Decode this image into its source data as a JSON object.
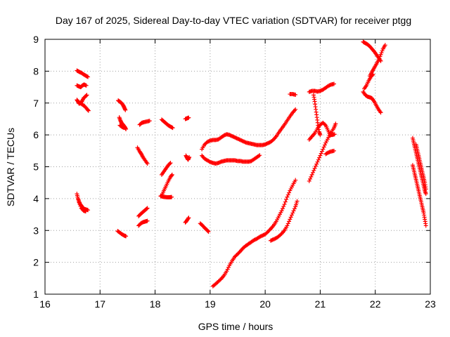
{
  "chart_data": {
    "type": "scatter",
    "title": "Day 167 of 2025, Sidereal Day-to-day VTEC variation (SDTVAR) for receiver ptgg",
    "xlabel": "GPS time / hours",
    "ylabel": "SDTVAR / TECUs",
    "xlim": [
      16,
      23
    ],
    "ylim": [
      1,
      9
    ],
    "xticks": [
      "16",
      "17",
      "18",
      "19",
      "20",
      "21",
      "22",
      "23"
    ],
    "yticks": [
      "1",
      "2",
      "3",
      "4",
      "5",
      "6",
      "7",
      "8",
      "9"
    ],
    "grid": true,
    "marker": "plus",
    "color": "#ff0000",
    "segments": [
      [
        [
          16.58,
          8.02
        ],
        [
          16.62,
          7.98
        ],
        [
          16.66,
          7.95
        ],
        [
          16.7,
          7.9
        ],
        [
          16.74,
          7.86
        ],
        [
          16.78,
          7.82
        ]
      ],
      [
        [
          16.58,
          7.55
        ],
        [
          16.62,
          7.52
        ],
        [
          16.65,
          7.5
        ],
        [
          16.68,
          7.55
        ],
        [
          16.71,
          7.58
        ],
        [
          16.75,
          7.55
        ]
      ],
      [
        [
          16.58,
          7.1
        ],
        [
          16.6,
          7.05
        ],
        [
          16.62,
          6.98
        ],
        [
          16.64,
          7.0
        ],
        [
          16.67,
          7.05
        ],
        [
          16.7,
          7.15
        ],
        [
          16.73,
          7.2
        ],
        [
          16.76,
          7.25
        ]
      ],
      [
        [
          16.64,
          7.0
        ],
        [
          16.68,
          6.95
        ],
        [
          16.72,
          6.9
        ],
        [
          16.76,
          6.82
        ],
        [
          16.79,
          6.76
        ]
      ],
      [
        [
          16.58,
          4.15
        ],
        [
          16.6,
          4.0
        ],
        [
          16.62,
          3.9
        ],
        [
          16.64,
          3.82
        ],
        [
          16.66,
          3.78
        ],
        [
          16.68,
          3.72
        ],
        [
          16.71,
          3.68
        ],
        [
          16.74,
          3.66
        ],
        [
          16.78,
          3.64
        ]
      ],
      [
        [
          16.62,
          3.88
        ],
        [
          16.66,
          3.7
        ],
        [
          16.7,
          3.62
        ],
        [
          16.74,
          3.6
        ]
      ],
      [
        [
          17.33,
          7.08
        ],
        [
          17.36,
          7.04
        ],
        [
          17.39,
          7.0
        ],
        [
          17.42,
          6.93
        ],
        [
          17.44,
          6.86
        ],
        [
          17.46,
          6.78
        ]
      ],
      [
        [
          17.35,
          6.55
        ],
        [
          17.37,
          6.45
        ],
        [
          17.39,
          6.38
        ],
        [
          17.42,
          6.32
        ],
        [
          17.45,
          6.25
        ],
        [
          17.47,
          6.18
        ]
      ],
      [
        [
          17.36,
          6.3
        ],
        [
          17.4,
          6.25
        ],
        [
          17.44,
          6.22
        ]
      ],
      [
        [
          17.32,
          2.98
        ],
        [
          17.36,
          2.93
        ],
        [
          17.4,
          2.88
        ],
        [
          17.44,
          2.84
        ],
        [
          17.47,
          2.82
        ]
      ],
      [
        [
          17.72,
          6.32
        ],
        [
          17.76,
          6.38
        ],
        [
          17.8,
          6.4
        ],
        [
          17.85,
          6.42
        ],
        [
          17.9,
          6.44
        ]
      ],
      [
        [
          17.68,
          5.6
        ],
        [
          17.72,
          5.48
        ],
        [
          17.75,
          5.4
        ],
        [
          17.78,
          5.3
        ],
        [
          17.82,
          5.2
        ],
        [
          17.86,
          5.1
        ]
      ],
      [
        [
          17.7,
          3.45
        ],
        [
          17.74,
          3.52
        ],
        [
          17.78,
          3.58
        ],
        [
          17.82,
          3.64
        ],
        [
          17.86,
          3.7
        ]
      ],
      [
        [
          17.7,
          3.15
        ],
        [
          17.74,
          3.22
        ],
        [
          17.78,
          3.26
        ],
        [
          17.82,
          3.28
        ],
        [
          17.86,
          3.3
        ]
      ],
      [
        [
          18.12,
          6.48
        ],
        [
          18.16,
          6.42
        ],
        [
          18.2,
          6.36
        ],
        [
          18.24,
          6.3
        ],
        [
          18.28,
          6.26
        ],
        [
          18.32,
          6.22
        ]
      ],
      [
        [
          18.12,
          4.75
        ],
        [
          18.16,
          4.85
        ],
        [
          18.2,
          4.95
        ],
        [
          18.24,
          5.05
        ],
        [
          18.28,
          5.12
        ]
      ],
      [
        [
          18.12,
          4.1
        ],
        [
          18.16,
          4.25
        ],
        [
          18.2,
          4.4
        ],
        [
          18.24,
          4.55
        ],
        [
          18.28,
          4.68
        ],
        [
          18.31,
          4.75
        ]
      ],
      [
        [
          18.1,
          4.08
        ],
        [
          18.14,
          4.06
        ],
        [
          18.18,
          4.05
        ],
        [
          18.22,
          4.04
        ],
        [
          18.26,
          4.04
        ],
        [
          18.3,
          4.05
        ]
      ],
      [
        [
          18.55,
          6.5
        ],
        [
          18.58,
          6.52
        ],
        [
          18.61,
          6.54
        ]
      ],
      [
        [
          18.56,
          5.35
        ],
        [
          18.58,
          5.28
        ],
        [
          18.6,
          5.22
        ],
        [
          18.62,
          5.3
        ]
      ],
      [
        [
          18.55,
          3.25
        ],
        [
          18.58,
          3.32
        ],
        [
          18.61,
          3.4
        ]
      ],
      [
        [
          18.82,
          3.22
        ],
        [
          18.86,
          3.16
        ],
        [
          18.9,
          3.08
        ],
        [
          18.94,
          3.02
        ],
        [
          18.97,
          2.96
        ]
      ],
      [
        [
          19.05,
          1.25
        ],
        [
          19.1,
          1.32
        ],
        [
          19.15,
          1.4
        ],
        [
          19.2,
          1.48
        ],
        [
          19.25,
          1.58
        ],
        [
          19.3,
          1.72
        ],
        [
          19.35,
          1.9
        ],
        [
          19.4,
          2.05
        ],
        [
          19.45,
          2.18
        ],
        [
          19.5,
          2.26
        ],
        [
          19.55,
          2.35
        ],
        [
          19.6,
          2.45
        ],
        [
          19.65,
          2.52
        ],
        [
          19.7,
          2.58
        ],
        [
          19.75,
          2.64
        ],
        [
          19.8,
          2.7
        ],
        [
          19.85,
          2.74
        ],
        [
          19.9,
          2.8
        ],
        [
          19.95,
          2.84
        ],
        [
          20.0,
          2.88
        ],
        [
          20.05,
          2.96
        ],
        [
          20.1,
          3.05
        ],
        [
          20.15,
          3.15
        ],
        [
          20.2,
          3.28
        ],
        [
          20.25,
          3.45
        ],
        [
          20.3,
          3.62
        ],
        [
          20.35,
          3.82
        ],
        [
          20.4,
          4.05
        ],
        [
          20.45,
          4.25
        ],
        [
          20.5,
          4.42
        ],
        [
          20.55,
          4.58
        ]
      ],
      [
        [
          20.1,
          2.68
        ],
        [
          20.15,
          2.72
        ],
        [
          20.2,
          2.76
        ],
        [
          20.25,
          2.82
        ],
        [
          20.3,
          2.9
        ],
        [
          20.35,
          3.0
        ],
        [
          20.4,
          3.15
        ],
        [
          20.45,
          3.35
        ],
        [
          20.5,
          3.55
        ],
        [
          20.55,
          3.75
        ],
        [
          20.58,
          3.92
        ]
      ],
      [
        [
          18.85,
          5.55
        ],
        [
          18.9,
          5.7
        ],
        [
          18.95,
          5.78
        ],
        [
          19.0,
          5.82
        ],
        [
          19.05,
          5.84
        ],
        [
          19.1,
          5.84
        ],
        [
          19.15,
          5.86
        ],
        [
          19.2,
          5.92
        ],
        [
          19.25,
          5.98
        ],
        [
          19.3,
          6.02
        ],
        [
          19.35,
          6.0
        ],
        [
          19.4,
          5.96
        ],
        [
          19.45,
          5.92
        ],
        [
          19.5,
          5.88
        ],
        [
          19.55,
          5.84
        ],
        [
          19.6,
          5.8
        ],
        [
          19.65,
          5.76
        ],
        [
          19.7,
          5.74
        ],
        [
          19.75,
          5.72
        ],
        [
          19.8,
          5.7
        ],
        [
          19.85,
          5.68
        ],
        [
          19.9,
          5.68
        ],
        [
          19.95,
          5.68
        ],
        [
          20.0,
          5.7
        ],
        [
          20.05,
          5.74
        ],
        [
          20.1,
          5.78
        ],
        [
          20.15,
          5.85
        ],
        [
          20.2,
          5.95
        ],
        [
          20.25,
          6.08
        ],
        [
          20.3,
          6.2
        ],
        [
          20.35,
          6.32
        ],
        [
          20.4,
          6.45
        ],
        [
          20.45,
          6.58
        ],
        [
          20.5,
          6.7
        ],
        [
          20.55,
          6.8
        ]
      ],
      [
        [
          18.85,
          5.35
        ],
        [
          18.9,
          5.25
        ],
        [
          18.95,
          5.2
        ],
        [
          19.0,
          5.15
        ],
        [
          19.05,
          5.12
        ],
        [
          19.1,
          5.1
        ],
        [
          19.15,
          5.12
        ],
        [
          19.2,
          5.16
        ],
        [
          19.25,
          5.18
        ],
        [
          19.3,
          5.2
        ],
        [
          19.35,
          5.2
        ],
        [
          19.4,
          5.2
        ],
        [
          19.45,
          5.2
        ],
        [
          19.5,
          5.18
        ],
        [
          19.55,
          5.18
        ],
        [
          19.6,
          5.16
        ],
        [
          19.65,
          5.16
        ],
        [
          19.7,
          5.16
        ],
        [
          19.75,
          5.18
        ],
        [
          19.8,
          5.24
        ],
        [
          19.85,
          5.3
        ],
        [
          19.9,
          5.36
        ]
      ],
      [
        [
          20.45,
          7.28
        ],
        [
          20.5,
          7.28
        ],
        [
          20.55,
          7.26
        ]
      ],
      [
        [
          20.8,
          7.35
        ],
        [
          20.85,
          7.38
        ],
        [
          20.9,
          7.38
        ],
        [
          20.95,
          7.36
        ],
        [
          21.0,
          7.38
        ],
        [
          21.05,
          7.42
        ],
        [
          21.1,
          7.48
        ],
        [
          21.15,
          7.54
        ],
        [
          21.2,
          7.58
        ],
        [
          21.25,
          7.6
        ]
      ],
      [
        [
          20.88,
          7.25
        ],
        [
          20.9,
          7.05
        ],
        [
          20.92,
          6.8
        ],
        [
          20.94,
          6.55
        ],
        [
          20.96,
          6.3
        ],
        [
          20.98,
          6.1
        ],
        [
          21.0,
          6.0
        ]
      ],
      [
        [
          20.8,
          5.85
        ],
        [
          20.85,
          5.95
        ],
        [
          20.9,
          6.05
        ],
        [
          20.95,
          6.2
        ],
        [
          21.0,
          6.32
        ],
        [
          21.05,
          6.38
        ],
        [
          21.1,
          6.3
        ],
        [
          21.14,
          6.15
        ],
        [
          21.18,
          6.0
        ],
        [
          21.22,
          6.0
        ],
        [
          21.26,
          6.02
        ]
      ],
      [
        [
          20.8,
          4.55
        ],
        [
          20.85,
          4.75
        ],
        [
          20.9,
          4.95
        ],
        [
          20.95,
          5.15
        ],
        [
          21.0,
          5.35
        ],
        [
          21.05,
          5.55
        ],
        [
          21.1,
          5.75
        ],
        [
          21.15,
          5.92
        ],
        [
          21.2,
          6.08
        ],
        [
          21.25,
          6.22
        ],
        [
          21.28,
          6.35
        ]
      ],
      [
        [
          21.1,
          5.4
        ],
        [
          21.15,
          5.45
        ],
        [
          21.2,
          5.48
        ],
        [
          21.25,
          5.5
        ]
      ],
      [
        [
          21.78,
          8.92
        ],
        [
          21.82,
          8.88
        ],
        [
          21.86,
          8.84
        ],
        [
          21.9,
          8.78
        ],
        [
          21.94,
          8.7
        ],
        [
          21.98,
          8.62
        ],
        [
          22.02,
          8.52
        ],
        [
          22.06,
          8.42
        ],
        [
          22.1,
          8.32
        ]
      ],
      [
        [
          21.9,
          7.85
        ],
        [
          21.94,
          7.98
        ],
        [
          21.98,
          8.1
        ],
        [
          22.02,
          8.22
        ],
        [
          22.06,
          8.35
        ],
        [
          22.1,
          8.52
        ],
        [
          22.14,
          8.7
        ],
        [
          22.18,
          8.82
        ]
      ],
      [
        [
          21.78,
          7.35
        ],
        [
          21.82,
          7.25
        ],
        [
          21.86,
          7.2
        ],
        [
          21.9,
          7.18
        ],
        [
          21.94,
          7.15
        ],
        [
          21.98,
          7.05
        ],
        [
          22.02,
          6.92
        ],
        [
          22.06,
          6.8
        ],
        [
          22.1,
          6.7
        ]
      ],
      [
        [
          21.8,
          7.45
        ],
        [
          21.84,
          7.55
        ],
        [
          21.88,
          7.7
        ],
        [
          21.92,
          7.82
        ],
        [
          21.96,
          7.9
        ]
      ],
      [
        [
          22.68,
          5.9
        ],
        [
          22.7,
          5.75
        ],
        [
          22.72,
          5.6
        ],
        [
          22.74,
          5.45
        ],
        [
          22.76,
          5.3
        ],
        [
          22.78,
          5.15
        ],
        [
          22.8,
          5.0
        ],
        [
          22.82,
          4.85
        ],
        [
          22.84,
          4.7
        ],
        [
          22.86,
          4.55
        ],
        [
          22.88,
          4.4
        ],
        [
          22.9,
          4.25
        ],
        [
          22.92,
          4.15
        ]
      ],
      [
        [
          22.74,
          5.7
        ],
        [
          22.76,
          5.55
        ],
        [
          22.78,
          5.4
        ],
        [
          22.8,
          5.25
        ],
        [
          22.82,
          5.1
        ],
        [
          22.84,
          4.95
        ],
        [
          22.86,
          4.8
        ],
        [
          22.88,
          4.65
        ],
        [
          22.9,
          4.5
        ],
        [
          22.92,
          4.3
        ]
      ],
      [
        [
          22.68,
          5.05
        ],
        [
          22.7,
          4.9
        ],
        [
          22.72,
          4.75
        ],
        [
          22.74,
          4.6
        ],
        [
          22.76,
          4.45
        ],
        [
          22.78,
          4.3
        ],
        [
          22.8,
          4.15
        ],
        [
          22.82,
          4.0
        ],
        [
          22.84,
          3.85
        ],
        [
          22.86,
          3.7
        ],
        [
          22.88,
          3.55
        ],
        [
          22.9,
          3.35
        ],
        [
          22.92,
          3.15
        ]
      ]
    ]
  }
}
